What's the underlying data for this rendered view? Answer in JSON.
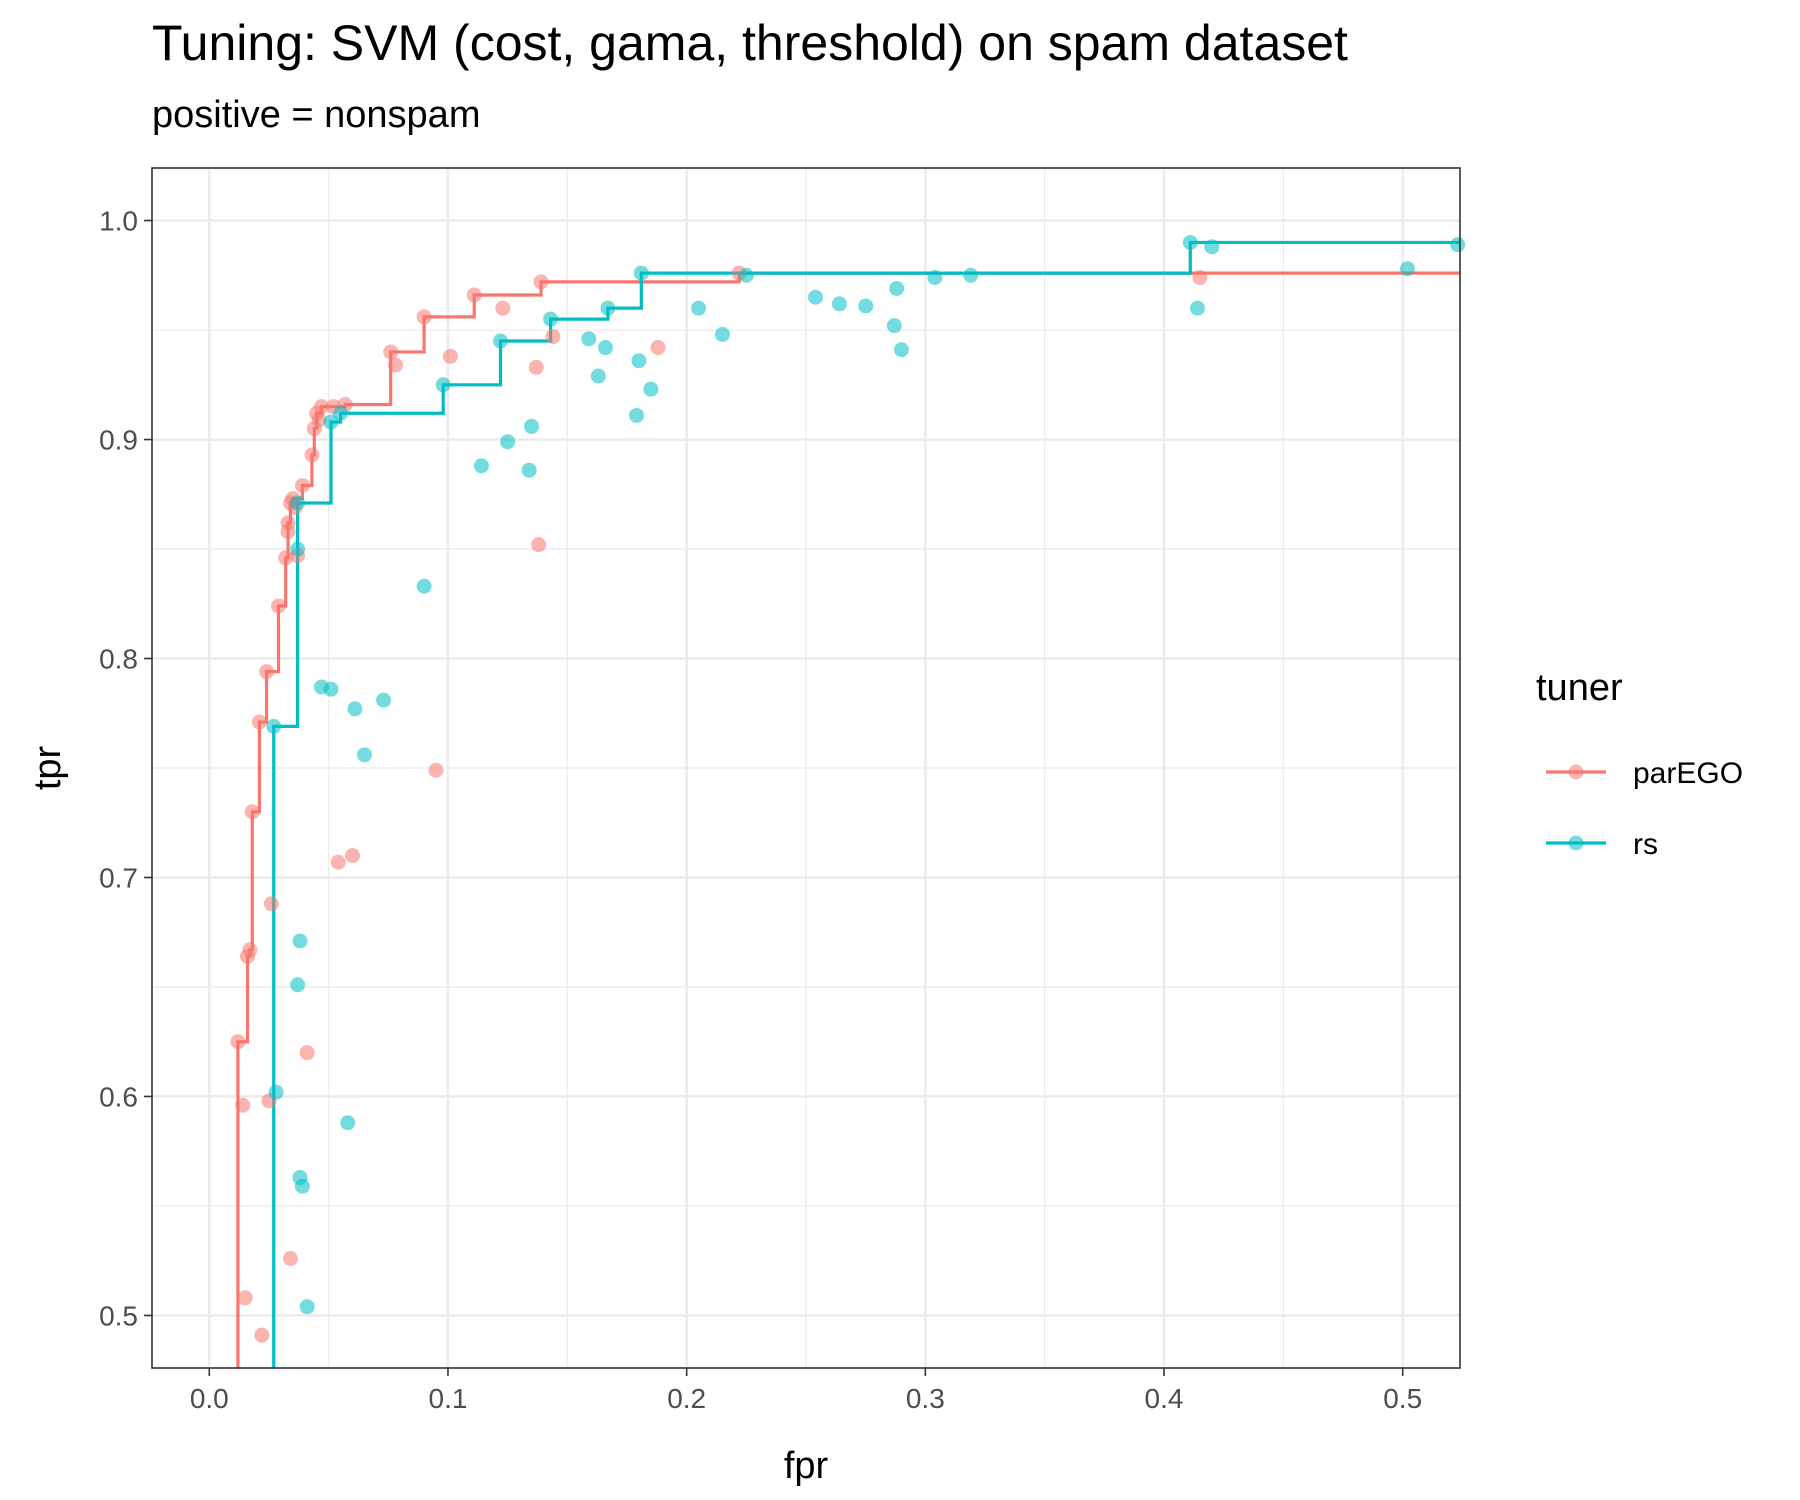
{
  "chart_data": {
    "type": "scatter",
    "title": "Tuning: SVM (cost, gama, threshold) on spam dataset",
    "subtitle": "positive = nonspam",
    "xlabel": "fpr",
    "ylabel": "tpr",
    "xlim": [
      -0.024,
      0.524
    ],
    "ylim": [
      0.476,
      1.024
    ],
    "x_ticks": [
      "0.0",
      "0.1",
      "0.2",
      "0.3",
      "0.4",
      "0.5"
    ],
    "y_ticks": [
      "0.5",
      "0.6",
      "0.7",
      "0.8",
      "0.9",
      "1.0"
    ],
    "grid": true,
    "legend": {
      "title": "tuner",
      "position": "right"
    },
    "series": [
      {
        "name": "parEGO",
        "color": "#F8766D",
        "points": [
          [
            0.012,
            0.625
          ],
          [
            0.014,
            0.596
          ],
          [
            0.015,
            0.508
          ],
          [
            0.022,
            0.491
          ],
          [
            0.025,
            0.598
          ],
          [
            0.026,
            0.688
          ],
          [
            0.016,
            0.664
          ],
          [
            0.017,
            0.667
          ],
          [
            0.018,
            0.73
          ],
          [
            0.021,
            0.771
          ],
          [
            0.024,
            0.794
          ],
          [
            0.029,
            0.824
          ],
          [
            0.032,
            0.846
          ],
          [
            0.033,
            0.858
          ],
          [
            0.033,
            0.862
          ],
          [
            0.034,
            0.871
          ],
          [
            0.035,
            0.873
          ],
          [
            0.036,
            0.869
          ],
          [
            0.037,
            0.847
          ],
          [
            0.039,
            0.879
          ],
          [
            0.043,
            0.893
          ],
          [
            0.044,
            0.905
          ],
          [
            0.045,
            0.912
          ],
          [
            0.046,
            0.909
          ],
          [
            0.047,
            0.915
          ],
          [
            0.052,
            0.915
          ],
          [
            0.057,
            0.916
          ],
          [
            0.034,
            0.526
          ],
          [
            0.041,
            0.62
          ],
          [
            0.054,
            0.707
          ],
          [
            0.06,
            0.71
          ],
          [
            0.076,
            0.94
          ],
          [
            0.078,
            0.934
          ],
          [
            0.09,
            0.956
          ],
          [
            0.095,
            0.749
          ],
          [
            0.101,
            0.938
          ],
          [
            0.111,
            0.966
          ],
          [
            0.123,
            0.96
          ],
          [
            0.137,
            0.933
          ],
          [
            0.138,
            0.852
          ],
          [
            0.139,
            0.972
          ],
          [
            0.144,
            0.947
          ],
          [
            0.188,
            0.942
          ],
          [
            0.222,
            0.976
          ],
          [
            0.415,
            0.974
          ]
        ],
        "front": [
          [
            0.012,
            0.476
          ],
          [
            0.012,
            0.625
          ],
          [
            0.016,
            0.664
          ],
          [
            0.017,
            0.667
          ],
          [
            0.018,
            0.73
          ],
          [
            0.021,
            0.771
          ],
          [
            0.024,
            0.794
          ],
          [
            0.029,
            0.824
          ],
          [
            0.032,
            0.846
          ],
          [
            0.033,
            0.862
          ],
          [
            0.034,
            0.871
          ],
          [
            0.035,
            0.873
          ],
          [
            0.039,
            0.879
          ],
          [
            0.043,
            0.893
          ],
          [
            0.044,
            0.905
          ],
          [
            0.045,
            0.912
          ],
          [
            0.047,
            0.915
          ],
          [
            0.057,
            0.916
          ],
          [
            0.076,
            0.94
          ],
          [
            0.09,
            0.956
          ],
          [
            0.111,
            0.966
          ],
          [
            0.139,
            0.972
          ],
          [
            0.222,
            0.976
          ],
          [
            0.524,
            0.976
          ]
        ]
      },
      {
        "name": "rs",
        "color": "#00BFC4",
        "points": [
          [
            0.027,
            0.769
          ],
          [
            0.028,
            0.602
          ],
          [
            0.037,
            0.871
          ],
          [
            0.037,
            0.85
          ],
          [
            0.037,
            0.651
          ],
          [
            0.038,
            0.671
          ],
          [
            0.038,
            0.563
          ],
          [
            0.039,
            0.559
          ],
          [
            0.041,
            0.504
          ],
          [
            0.047,
            0.787
          ],
          [
            0.051,
            0.786
          ],
          [
            0.051,
            0.908
          ],
          [
            0.055,
            0.912
          ],
          [
            0.058,
            0.588
          ],
          [
            0.061,
            0.777
          ],
          [
            0.065,
            0.756
          ],
          [
            0.073,
            0.781
          ],
          [
            0.09,
            0.833
          ],
          [
            0.098,
            0.925
          ],
          [
            0.114,
            0.888
          ],
          [
            0.122,
            0.945
          ],
          [
            0.125,
            0.899
          ],
          [
            0.134,
            0.886
          ],
          [
            0.135,
            0.906
          ],
          [
            0.143,
            0.955
          ],
          [
            0.159,
            0.946
          ],
          [
            0.163,
            0.929
          ],
          [
            0.166,
            0.942
          ],
          [
            0.167,
            0.96
          ],
          [
            0.179,
            0.911
          ],
          [
            0.18,
            0.936
          ],
          [
            0.181,
            0.976
          ],
          [
            0.185,
            0.923
          ],
          [
            0.205,
            0.96
          ],
          [
            0.215,
            0.948
          ],
          [
            0.225,
            0.975
          ],
          [
            0.254,
            0.965
          ],
          [
            0.264,
            0.962
          ],
          [
            0.275,
            0.961
          ],
          [
            0.287,
            0.952
          ],
          [
            0.288,
            0.969
          ],
          [
            0.29,
            0.941
          ],
          [
            0.304,
            0.974
          ],
          [
            0.319,
            0.975
          ],
          [
            0.411,
            0.99
          ],
          [
            0.414,
            0.96
          ],
          [
            0.42,
            0.988
          ],
          [
            0.502,
            0.978
          ],
          [
            0.523,
            0.989
          ]
        ],
        "front": [
          [
            0.027,
            0.476
          ],
          [
            0.027,
            0.769
          ],
          [
            0.037,
            0.871
          ],
          [
            0.051,
            0.908
          ],
          [
            0.055,
            0.912
          ],
          [
            0.098,
            0.925
          ],
          [
            0.122,
            0.945
          ],
          [
            0.143,
            0.955
          ],
          [
            0.167,
            0.96
          ],
          [
            0.181,
            0.976
          ],
          [
            0.411,
            0.99
          ],
          [
            0.524,
            0.99
          ]
        ]
      }
    ]
  }
}
